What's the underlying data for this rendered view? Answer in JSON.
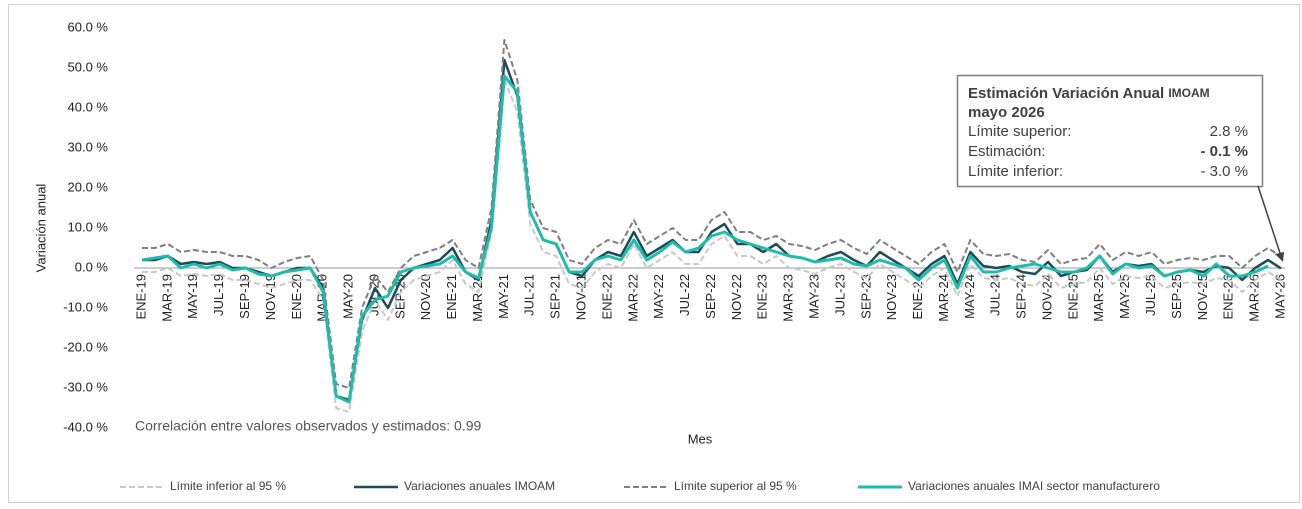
{
  "chart_data": {
    "type": "line",
    "y_label": "Variación anual",
    "x_label": "Mes",
    "ylim": [
      -40,
      60
    ],
    "yticks": [
      {
        "value": -40,
        "label": "-40.0 %"
      },
      {
        "value": -30,
        "label": "-30.0 %"
      },
      {
        "value": -20,
        "label": "-20.0 %"
      },
      {
        "value": -10,
        "label": "-10.0 %"
      },
      {
        "value": 0,
        "label": "0.0 %"
      },
      {
        "value": 10,
        "label": "10.0 %"
      },
      {
        "value": 20,
        "label": "20.0 %"
      },
      {
        "value": 30,
        "label": "30.0 %"
      },
      {
        "value": 40,
        "label": "40.0 %"
      },
      {
        "value": 50,
        "label": "50.0 %"
      },
      {
        "value": 60,
        "label": "60.0 %"
      }
    ],
    "grid": false,
    "legend": "bottom",
    "categories": [
      "ENE-19",
      null,
      "MAR-19",
      null,
      "MAY-19",
      null,
      "JUL-19",
      null,
      "SEP-19",
      null,
      "NOV-19",
      null,
      "ENE-20",
      null,
      "MAR-20",
      null,
      "MAY-20",
      null,
      "JUL-20",
      null,
      "SEP-20",
      null,
      "NOV-20",
      null,
      "ENE-21",
      null,
      "MAR-21",
      null,
      "MAY-21",
      null,
      "JUL-21",
      null,
      "SEP-21",
      null,
      "NOV-21",
      null,
      "ENE-22",
      null,
      "MAR-22",
      null,
      "MAY-22",
      null,
      "JUL-22",
      null,
      "SEP-22",
      null,
      "NOV-22",
      null,
      "ENE-23",
      null,
      "MAR-23",
      null,
      "MAY-23",
      null,
      "JUL-23",
      null,
      "SEP-23",
      null,
      "NOV-23",
      null,
      "ENE-24",
      null,
      "MAR-24",
      null,
      "MAY-24",
      null,
      "JUL-24",
      null,
      "SEP-24",
      null,
      "NOV-24",
      null,
      "ENE-25",
      null,
      "MAR-25",
      null,
      "MAY-25",
      null,
      "JUL-25",
      null,
      "SEP-25",
      null,
      "NOV-25",
      null,
      "ENE-26",
      null,
      "MAR-26",
      null,
      "MAY-26"
    ],
    "series": [
      {
        "name": "Límite inferior al 95 %",
        "color": "#c8c8c8",
        "dashed": true,
        "width": 2,
        "values": [
          -1,
          -1,
          0,
          -2,
          -1.5,
          -2,
          -1.5,
          -3,
          -3,
          -4,
          -5,
          -4,
          -3,
          -3,
          -8,
          -35,
          -36,
          -16,
          -8,
          -13,
          -6,
          -3,
          -2,
          -1,
          2,
          -4,
          -6,
          9,
          47,
          39,
          11,
          4,
          3,
          -4,
          -5,
          -1,
          1,
          0,
          6,
          0,
          2,
          4,
          1,
          1,
          6,
          8,
          3,
          3,
          1,
          3,
          0,
          -0.5,
          -1.5,
          0,
          1,
          -1,
          -2.5,
          1,
          -1,
          -3,
          -5,
          -2,
          0,
          -7,
          1,
          -2.5,
          -3,
          -2.5,
          -4,
          -4.5,
          -1.5,
          -5,
          -4,
          -3.5,
          0,
          -4,
          -2,
          -2.5,
          -2,
          -5,
          -4,
          -3.5,
          -4,
          -2.5,
          -3,
          -6,
          -3,
          -1,
          -3
        ]
      },
      {
        "name": "Variaciones anuales IMOAM",
        "color": "#1d4b57",
        "dashed": false,
        "width": 2.5,
        "values": [
          2,
          2,
          3,
          1,
          1.5,
          1,
          1.5,
          0,
          0,
          -1,
          -2,
          -1,
          0,
          0,
          -5,
          -32,
          -33,
          -13,
          -5,
          -10,
          -3,
          0,
          1,
          2,
          5,
          -1,
          -3,
          12,
          52,
          43,
          14,
          7,
          6,
          -1,
          -2,
          2,
          4,
          3,
          9,
          3,
          5,
          7,
          4,
          4,
          9,
          11,
          6,
          6,
          4,
          6,
          3,
          2.5,
          1.5,
          3,
          4,
          2,
          0.5,
          4,
          2,
          0,
          -2,
          1,
          3,
          -4,
          4,
          0.5,
          0,
          0.5,
          -1,
          -1.5,
          1.5,
          -2,
          -1,
          -0.5,
          3,
          -1,
          1,
          0.5,
          1,
          -2,
          -1,
          -0.5,
          -1,
          0.5,
          0,
          -3,
          0,
          2,
          -0.1
        ]
      },
      {
        "name": "Límite superior al 95 %",
        "color": "#7f7f7f",
        "dashed": true,
        "width": 2,
        "values": [
          5,
          5,
          6,
          4,
          4.5,
          4,
          4,
          3,
          3,
          2,
          0,
          1.5,
          2.5,
          3,
          -3,
          -29,
          -30,
          -10,
          -2,
          -6,
          0,
          3,
          4,
          5,
          7,
          2,
          0,
          15,
          57,
          47,
          17,
          10,
          9,
          2,
          1,
          5,
          7,
          6,
          12,
          6,
          8,
          10,
          7,
          7,
          12,
          14,
          9,
          9,
          7,
          8,
          6,
          5.5,
          4.5,
          6,
          7,
          5,
          3.5,
          7,
          5,
          3,
          1,
          4,
          6,
          -1,
          7,
          3.5,
          3,
          3.5,
          2,
          1.5,
          4.5,
          1,
          2,
          2.5,
          6,
          2,
          4,
          3,
          4,
          1,
          2,
          2.5,
          2,
          3,
          3,
          0,
          3,
          5,
          2.8
        ]
      },
      {
        "name": "Variaciones anuales IMAI sector manufacturero",
        "color": "#1fbcae",
        "dashed": false,
        "width": 3,
        "values": [
          2,
          2.5,
          3,
          0,
          1,
          0,
          1,
          -0.5,
          0,
          -1.5,
          -2,
          -1,
          -0.5,
          0,
          -6,
          -32,
          -33.5,
          -12,
          -8,
          -7,
          -1,
          0,
          0.5,
          1,
          3,
          -1,
          -2.5,
          10,
          48,
          44,
          14,
          7,
          6,
          -1,
          -1,
          2,
          3,
          2,
          7,
          2,
          4,
          6.5,
          4,
          5,
          8,
          9,
          7,
          6,
          5,
          4,
          3,
          2.5,
          1.5,
          2,
          2.5,
          1,
          0.5,
          2,
          1,
          0,
          -3,
          0,
          2,
          -5,
          3,
          -1,
          -1,
          0,
          0.5,
          1,
          0,
          -1,
          -1,
          0,
          3,
          -1.5,
          1,
          0,
          0.5,
          -2,
          -1,
          -0.5,
          -2,
          1,
          -2,
          -2,
          -1,
          0.5,
          null
        ]
      }
    ],
    "annotations": {
      "box_title": "Estimación Variación Anual",
      "box_title_suffix": "IMOAM",
      "box_subtitle": "mayo 2026",
      "rows": [
        [
          "Límite superior:",
          "2.8 %"
        ],
        [
          "Estimación:",
          "- 0.1 %"
        ],
        [
          "Límite inferior:",
          "- 3.0 %"
        ]
      ],
      "correlation": "Correlación entre valores observados y estimados:  0.99"
    }
  }
}
